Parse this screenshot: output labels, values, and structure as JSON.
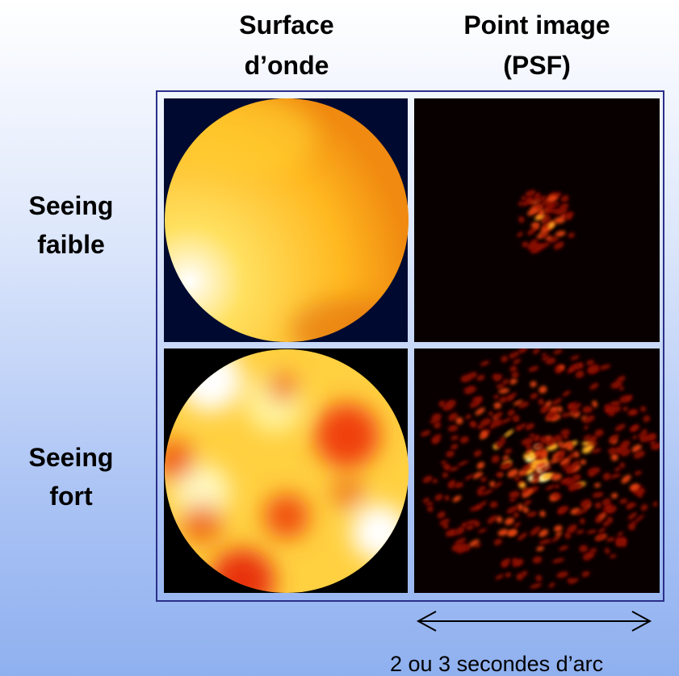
{
  "columns": [
    {
      "lines": [
        "Surface",
        "d’onde"
      ]
    },
    {
      "lines": [
        "Point image",
        "(PSF)"
      ]
    }
  ],
  "rows": [
    {
      "lines": [
        "Seeing",
        "faible"
      ]
    },
    {
      "lines": [
        "Seeing",
        "fort"
      ]
    }
  ],
  "caption": "2 ou 3 secondes d’arc"
}
